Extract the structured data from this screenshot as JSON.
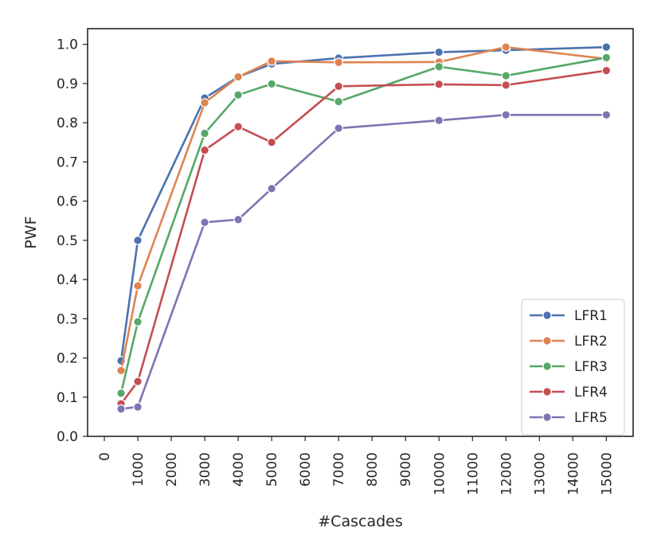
{
  "chart_data": {
    "type": "line",
    "title": "",
    "xlabel": "#Cascades",
    "ylabel": "PWF",
    "xlim": [
      -500,
      15800
    ],
    "ylim": [
      0.0,
      1.04
    ],
    "xticks": [
      0,
      1000,
      2000,
      3000,
      4000,
      5000,
      6000,
      7000,
      8000,
      9000,
      10000,
      11000,
      12000,
      13000,
      14000,
      15000
    ],
    "yticks": [
      0.0,
      0.1,
      0.2,
      0.3,
      0.4,
      0.5,
      0.6,
      0.7,
      0.8,
      0.9,
      1.0
    ],
    "ytick_labels": [
      "0.0",
      "0.1",
      "0.2",
      "0.3",
      "0.4",
      "0.5",
      "0.6",
      "0.7",
      "0.8",
      "0.9",
      "1.0"
    ],
    "grid": false,
    "legend_position": "lower-right",
    "x": [
      500,
      1000,
      3000,
      4000,
      5000,
      7000,
      10000,
      12000,
      15000
    ],
    "series": [
      {
        "name": "LFR1",
        "color": "#4c72b0",
        "values": [
          0.193,
          0.5,
          0.863,
          0.917,
          0.95,
          0.965,
          0.98,
          0.985,
          0.993
        ]
      },
      {
        "name": "LFR2",
        "color": "#dd8452",
        "values": [
          0.168,
          0.384,
          0.851,
          0.917,
          0.957,
          0.954,
          0.955,
          0.993,
          0.963
        ]
      },
      {
        "name": "LFR3",
        "color": "#55a868",
        "values": [
          0.11,
          0.292,
          0.773,
          0.871,
          0.899,
          0.854,
          0.943,
          0.92,
          0.966
        ]
      },
      {
        "name": "LFR4",
        "color": "#c44e52",
        "values": [
          0.083,
          0.14,
          0.73,
          0.79,
          0.75,
          0.893,
          0.898,
          0.896,
          0.933
        ]
      },
      {
        "name": "LFR5",
        "color": "#8172b3",
        "values": [
          0.07,
          0.075,
          0.546,
          0.553,
          0.632,
          0.786,
          0.806,
          0.82,
          0.82
        ]
      }
    ]
  }
}
